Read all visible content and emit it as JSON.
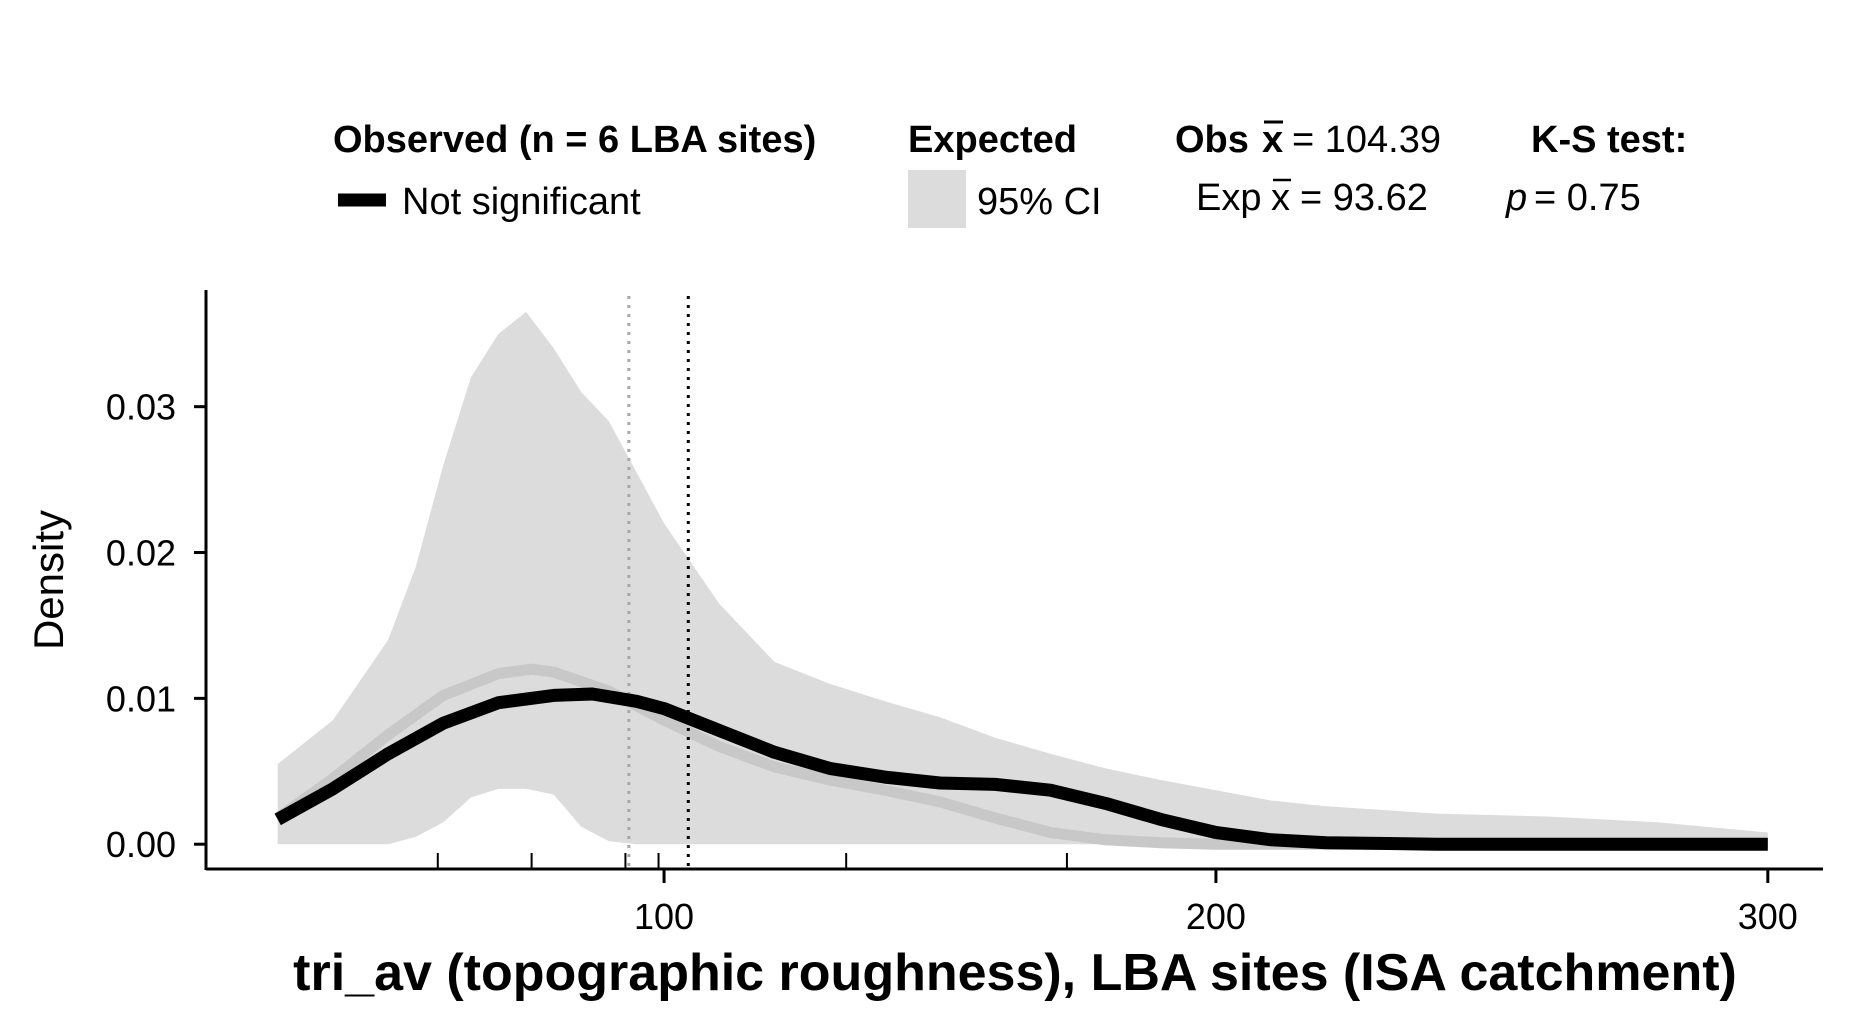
{
  "legend": {
    "observed_title": "Observed (n = 6 LBA sites)",
    "observed_item": "Not significant",
    "expected_title": "Expected",
    "expected_item": "95% CI",
    "obs_mean_label": "Obs",
    "obs_mean_value": "= 104.39",
    "exp_mean_label": "Exp",
    "exp_mean_value": "= 93.62",
    "xbar_symbol": "x",
    "ks_title": "K-S test:",
    "ks_p_symbol": "p",
    "ks_p_value": "= 0.75"
  },
  "colors": {
    "observed_line": "#000000",
    "expected_line": "#c8c8c8",
    "ci_band": "#dcdcdc",
    "obs_mean_line": "#000000",
    "exp_mean_line": "#a8a8a8"
  },
  "chart_data": {
    "type": "line",
    "xlabel": "tri_av (topographic roughness), LBA sites (ISA catchment)",
    "ylabel": "Density",
    "xlim": [
      17,
      310
    ],
    "ylim": [
      -0.0017,
      0.038
    ],
    "x_ticks": [
      100,
      200,
      300
    ],
    "x_tick_labels": [
      "100",
      "200",
      "300"
    ],
    "x_rug_marks": [
      59,
      76,
      93,
      99,
      133,
      173
    ],
    "y_ticks": [
      0.0,
      0.01,
      0.02,
      0.03
    ],
    "y_tick_labels": [
      "0.00",
      "0.01",
      "0.02",
      "0.03"
    ],
    "grid": false,
    "legend_position": "top",
    "obs_mean": 104.39,
    "exp_mean": 93.62,
    "ks_p": 0.75,
    "ci_band": {
      "x": [
        30,
        40,
        50,
        55,
        60,
        65,
        70,
        75,
        80,
        85,
        90,
        95,
        100,
        110,
        120,
        130,
        140,
        150,
        160,
        170,
        180,
        190,
        200,
        210,
        220,
        240,
        260,
        280,
        300
      ],
      "upper": [
        0.0055,
        0.0085,
        0.014,
        0.019,
        0.026,
        0.032,
        0.035,
        0.0365,
        0.034,
        0.031,
        0.029,
        0.0255,
        0.022,
        0.0165,
        0.0125,
        0.011,
        0.0098,
        0.0087,
        0.0073,
        0.0062,
        0.0052,
        0.0044,
        0.0037,
        0.003,
        0.0026,
        0.0021,
        0.0019,
        0.0015,
        0.0008
      ],
      "lower": [
        0.0,
        0.0,
        0.0,
        0.0005,
        0.0015,
        0.0032,
        0.0038,
        0.0038,
        0.0034,
        0.0012,
        0.0002,
        0.0,
        0.0,
        0.0,
        0.0,
        0.0,
        0.0,
        0.0,
        0.0,
        0.0,
        0.0,
        0.0,
        0.0,
        0.0,
        0.0,
        0.0,
        0.0,
        0.0,
        0.0
      ]
    },
    "series": [
      {
        "name": "Not significant",
        "role": "observed",
        "x": [
          30,
          40,
          50,
          60,
          70,
          80,
          87,
          95,
          100,
          110,
          120,
          130,
          140,
          150,
          160,
          170,
          180,
          190,
          200,
          210,
          220,
          240,
          260,
          280,
          300
        ],
        "y": [
          0.0017,
          0.0038,
          0.0062,
          0.0083,
          0.0097,
          0.0102,
          0.0103,
          0.0098,
          0.0093,
          0.0078,
          0.0063,
          0.0052,
          0.0046,
          0.0042,
          0.0041,
          0.0037,
          0.0028,
          0.0017,
          0.0008,
          0.0003,
          0.0001,
          0.0,
          0.0,
          0.0,
          0.0
        ]
      },
      {
        "role": "expected",
        "x": [
          30,
          40,
          50,
          60,
          70,
          76,
          80,
          90,
          100,
          110,
          120,
          130,
          140,
          150,
          160,
          170,
          180,
          190,
          200,
          210,
          220,
          240,
          260,
          280,
          300
        ],
        "y": [
          0.0018,
          0.0045,
          0.0075,
          0.0102,
          0.0117,
          0.012,
          0.0118,
          0.0105,
          0.0085,
          0.0067,
          0.0053,
          0.0044,
          0.0037,
          0.0029,
          0.0018,
          0.0008,
          0.0003,
          0.0001,
          0.0,
          0.0,
          0.0,
          0.0,
          0.0,
          0.0,
          0.0
        ]
      }
    ]
  }
}
